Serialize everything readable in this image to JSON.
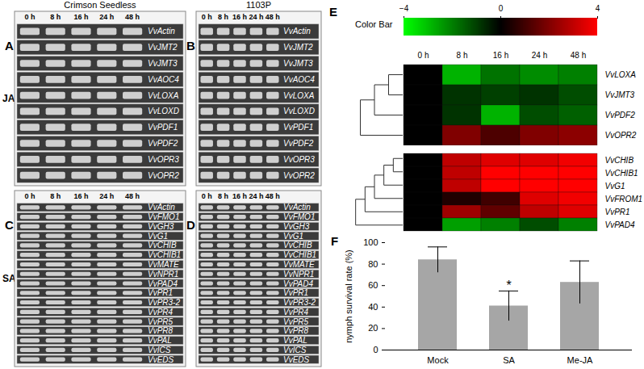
{
  "gels": {
    "cultivars": [
      "Crimson Seedless",
      "1103P"
    ],
    "time_points": [
      "0 h",
      "8 h",
      "16 h",
      "24 h",
      "48 h"
    ],
    "hormones": [
      "JA",
      "SA"
    ],
    "panels": [
      {
        "letter": "A",
        "genes": [
          "VvActin",
          "VvJMT2",
          "VvJMT3",
          "VvAOC4",
          "VvLOXA",
          "VvLOXD",
          "VvPDF1",
          "VvPDF2",
          "VvOPR3",
          "VvOPR2"
        ]
      },
      {
        "letter": "B",
        "genes": [
          "VvActin",
          "VvJMT2",
          "VvJMT3",
          "VvAOC4",
          "VvLOXA",
          "VvLOXD",
          "VvPDF1",
          "VvPDF2",
          "VvOPR3",
          "VvOPR2"
        ]
      },
      {
        "letter": "C",
        "genes": [
          "VvActin",
          "VvFMO1",
          "VvGH3",
          "VvG1",
          "VvCHIB",
          "VvCHIB1",
          "VvMATE",
          "VvNPR1",
          "VvPAD4",
          "VvPR1",
          "VvPR3-2",
          "VvPR4",
          "VvPR5",
          "VvPR8",
          "VvPAL",
          "VvICS",
          "VvEDS"
        ]
      },
      {
        "letter": "D",
        "genes": [
          "VvActin",
          "VvFMO1",
          "VvGH3",
          "VvG1",
          "VvCHIB",
          "VvCHIB1",
          "VvMATE",
          "VvNPR1",
          "VvPAD4",
          "VvPR1",
          "VvPR3-2",
          "VvPR4",
          "VvPR5",
          "VvPR8",
          "VvPAL",
          "VvICS",
          "VvEDS"
        ]
      }
    ]
  },
  "chart_data": [
    {
      "type": "heatmap",
      "letter": "E",
      "x": [
        "0 h",
        "8 h",
        "16 h",
        "24 h",
        "48 h"
      ],
      "colorbar": {
        "title": "Color Bar",
        "range": [
          -4,
          4
        ],
        "ticks": [
          -4,
          0,
          4
        ]
      },
      "groups": [
        {
          "genes": [
            "VvLOXA",
            "VvJMT3",
            "VvPDF2",
            "VvOPR2"
          ],
          "cells": [
            [
              0,
              -2.8,
              -1.8,
              -2.2,
              -2.0
            ],
            [
              0,
              -0.8,
              -1.0,
              -0.8,
              -1.2
            ],
            [
              0,
              -0.8,
              -2.8,
              -1.2,
              -1.5
            ],
            [
              0,
              2.0,
              1.2,
              2.0,
              2.2
            ]
          ]
        },
        {
          "genes": [
            "VvCHIB",
            "VvCHIB1",
            "VvG1",
            "VvFROM1",
            "VvPR1",
            "VvPAD4"
          ],
          "cells": [
            [
              0,
              3.0,
              3.5,
              3.5,
              3.8
            ],
            [
              0,
              3.0,
              4,
              4,
              4
            ],
            [
              0,
              3.0,
              4,
              4,
              4
            ],
            [
              0,
              0.5,
              1.0,
              3.5,
              3.8
            ],
            [
              0,
              2.5,
              1.5,
              3.0,
              3.5
            ],
            [
              0,
              -2.5,
              -2.0,
              -1.2,
              -2.0
            ]
          ]
        }
      ]
    },
    {
      "type": "bar",
      "letter": "F",
      "categories": [
        "Mock",
        "SA",
        "Me-JA"
      ],
      "values": [
        84,
        41,
        63
      ],
      "errors": [
        12,
        14,
        20
      ],
      "color": "#a6a6a6",
      "ylabel": "nymph survival rate (%)",
      "ylim": [
        0,
        100
      ],
      "yticks": [
        0,
        20,
        40,
        60,
        80,
        100
      ],
      "annotations": [
        {
          "category": "SA",
          "text": "*"
        }
      ]
    }
  ]
}
